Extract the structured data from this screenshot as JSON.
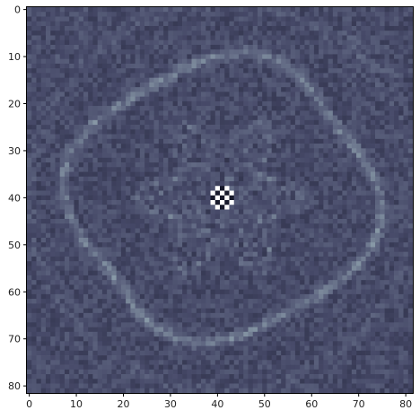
{
  "figure": {
    "kind": "image-plot",
    "description_colormap": "bone-like gray-blue",
    "grid_size": [
      82,
      82
    ],
    "colors": {
      "background": "#ffffff",
      "frame": "#000000",
      "dark": "#1c1f33",
      "base": "#4b4e6e",
      "ring": "#8e9fae",
      "bright": "#ffffff"
    }
  },
  "axes": {
    "x_ticks": [
      "0",
      "10",
      "20",
      "30",
      "40",
      "50",
      "60",
      "70",
      "80"
    ],
    "y_ticks": [
      "0",
      "10",
      "20",
      "30",
      "40",
      "50",
      "60",
      "70",
      "80"
    ],
    "x_values": [
      0,
      10,
      20,
      30,
      40,
      50,
      60,
      70,
      80
    ],
    "y_values": [
      0,
      10,
      20,
      30,
      40,
      50,
      60,
      70,
      80
    ],
    "range": [
      0,
      81
    ]
  }
}
